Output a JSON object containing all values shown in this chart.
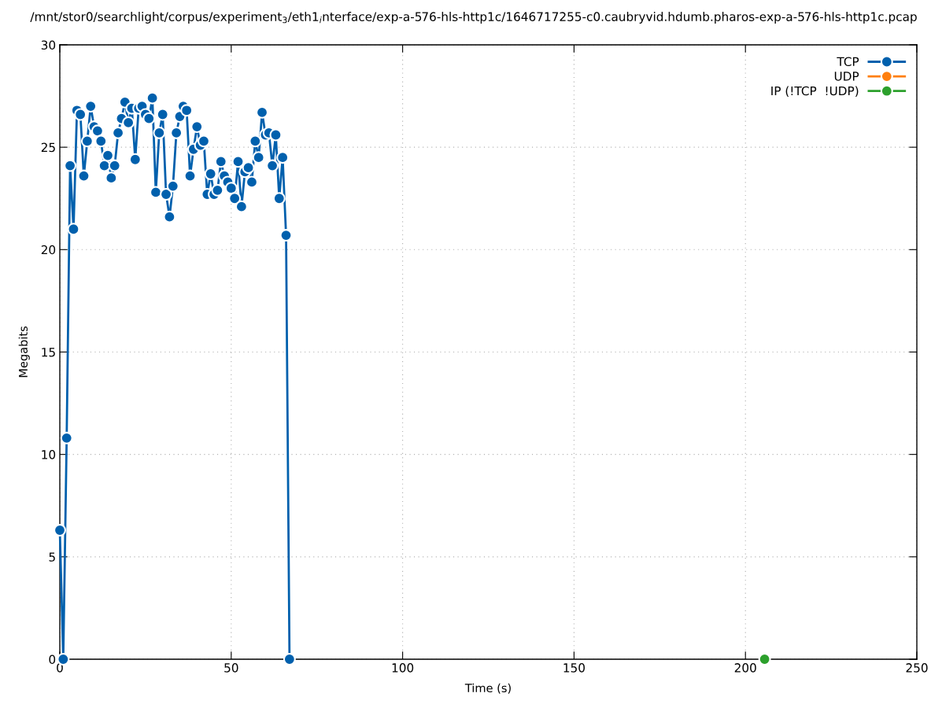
{
  "chart_data": {
    "type": "line",
    "title": "/mnt/stor0/searchlight/corpus/experiment$_{3}$/eth1$_{i}$nterface/exp-a-576-hls-http1c/1646717255-c0.caubryvid.hdumb.pharos-exp-a-576-hls-http1c.pcap",
    "xlabel": "Time (s)",
    "ylabel": "Megabits",
    "xlim": [
      0,
      250
    ],
    "xticks": [
      0,
      50,
      100,
      150,
      200,
      250
    ],
    "ylim": [
      0,
      30
    ],
    "yticks": [
      0,
      5,
      10,
      15,
      20,
      25,
      30
    ],
    "grid": true,
    "legend": "top right",
    "marker": "circle",
    "line_style": "solid",
    "series": [
      {
        "name": "TCP",
        "color": "#0060ad",
        "x": [
          0,
          1,
          2,
          3,
          4,
          5,
          6,
          7,
          8,
          9,
          10,
          11,
          12,
          13,
          14,
          15,
          16,
          17,
          18,
          19,
          20,
          21,
          22,
          23,
          24,
          25,
          26,
          27,
          28,
          29,
          30,
          31,
          32,
          33,
          34,
          35,
          36,
          37,
          38,
          39,
          40,
          41,
          42,
          43,
          44,
          45,
          46,
          47,
          48,
          49,
          50,
          51,
          52,
          53,
          54,
          55,
          56,
          57,
          58,
          59,
          60,
          61,
          62,
          63,
          64,
          65,
          66,
          67
        ],
        "values": [
          6.3,
          0,
          10.8,
          24.1,
          21.0,
          26.8,
          26.6,
          23.6,
          25.3,
          27.0,
          26.0,
          25.8,
          25.3,
          24.1,
          24.6,
          23.5,
          24.1,
          25.7,
          26.4,
          27.2,
          26.2,
          26.9,
          24.4,
          26.9,
          27.0,
          26.6,
          26.4,
          27.4,
          22.8,
          25.7,
          26.6,
          22.7,
          21.6,
          23.1,
          25.7,
          26.5,
          27.0,
          26.8,
          23.6,
          24.9,
          26.0,
          25.1,
          25.3,
          22.7,
          23.7,
          22.7,
          22.9,
          24.3,
          23.6,
          23.3,
          23.0,
          22.5,
          24.3,
          22.1,
          23.8,
          24.0,
          23.3,
          25.3,
          24.5,
          26.7,
          25.6,
          25.7,
          24.1,
          25.6,
          22.5,
          24.5,
          20.7,
          0
        ]
      },
      {
        "name": "UDP",
        "color": "#ff7f0e"
      },
      {
        "name": "IP (!TCP  !UDP)",
        "color": "#2ca02c",
        "x": [
          205.6
        ],
        "values": [
          0
        ]
      }
    ]
  }
}
